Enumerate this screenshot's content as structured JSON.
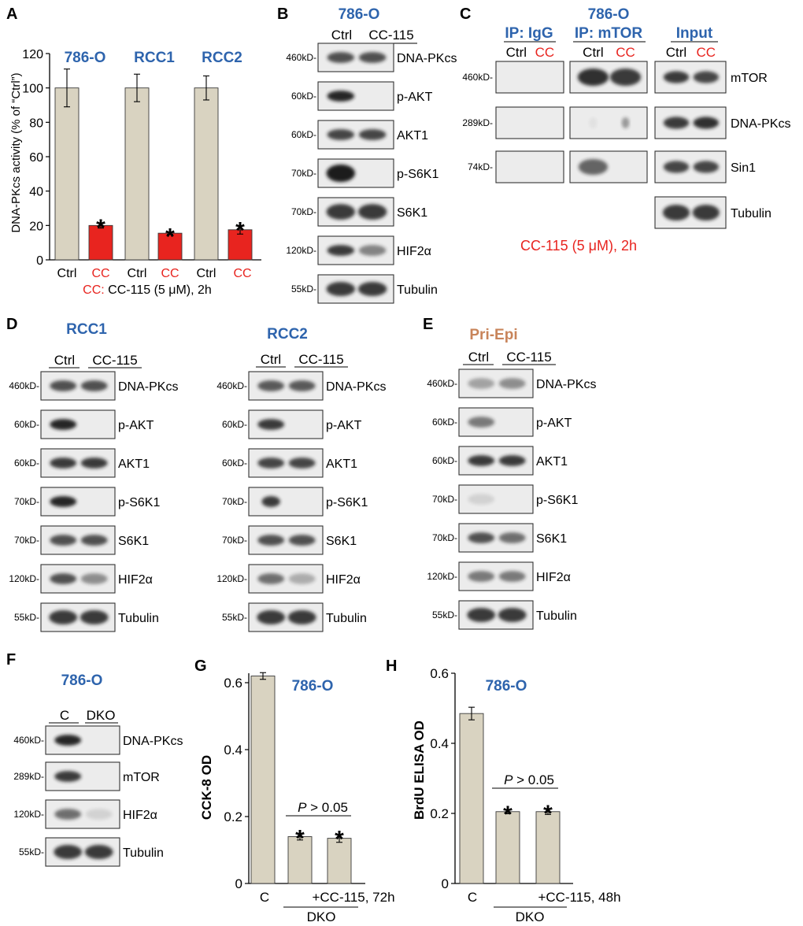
{
  "panelA": {
    "letter": "A",
    "groups": [
      "786-O",
      "RCC1",
      "RCC2"
    ],
    "categories": [
      "Ctrl",
      "CC",
      "Ctrl",
      "CC",
      "Ctrl",
      "CC"
    ],
    "ylabel": "DNA-PKcs activity (% of “Ctrl”)",
    "yticks": [
      "0",
      "20",
      "40",
      "60",
      "80",
      "100",
      "120"
    ],
    "note_prefix": "CC:",
    "note_rest": " CC-115 (5 μM), 2h",
    "sig": [
      "*",
      "*",
      "*"
    ]
  },
  "panelB": {
    "letter": "B",
    "cell": "786-O",
    "lanes": [
      "Ctrl",
      "CC-115"
    ],
    "rows": [
      {
        "kd": "460kD-",
        "protein": "DNA-PKcs"
      },
      {
        "kd": "60kD-",
        "protein": "p-AKT"
      },
      {
        "kd": "60kD-",
        "protein": "AKT1"
      },
      {
        "kd": "70kD-",
        "protein": "p-S6K1"
      },
      {
        "kd": "70kD-",
        "protein": "S6K1"
      },
      {
        "kd": "120kD-",
        "protein": "HIF2α"
      },
      {
        "kd": "55kD-",
        "protein": "Tubulin"
      }
    ]
  },
  "panelC": {
    "letter": "C",
    "cell": "786-O",
    "ip_igg": "IP: IgG",
    "ip_mtor": "IP: mTOR",
    "input": "Input",
    "lane_ctrl": "Ctrl",
    "lane_cc": "CC",
    "kd": [
      "460kD-",
      "289kD-",
      "74kD-"
    ],
    "proteins": [
      "mTOR",
      "DNA-PKcs",
      "Sin1",
      "Tubulin"
    ],
    "note": "CC-115 (5 μM), 2h"
  },
  "panelD": {
    "letter": "D",
    "cells": [
      "RCC1",
      "RCC2"
    ],
    "lanes": [
      "Ctrl",
      "CC-115"
    ],
    "rows": [
      {
        "kd": "460kD-",
        "protein": "DNA-PKcs"
      },
      {
        "kd": "60kD-",
        "protein": "p-AKT"
      },
      {
        "kd": "60kD-",
        "protein": "AKT1"
      },
      {
        "kd": "70kD-",
        "protein": "p-S6K1"
      },
      {
        "kd": "70kD-",
        "protein": "S6K1"
      },
      {
        "kd": "120kD-",
        "protein": "HIF2α"
      },
      {
        "kd": "55kD-",
        "protein": "Tubulin"
      }
    ]
  },
  "panelE": {
    "letter": "E",
    "cell": "Pri-Epi",
    "lanes": [
      "Ctrl",
      "CC-115"
    ],
    "rows": [
      {
        "kd": "460kD-",
        "protein": "DNA-PKcs"
      },
      {
        "kd": "60kD-",
        "protein": "p-AKT"
      },
      {
        "kd": "60kD-",
        "protein": "AKT1"
      },
      {
        "kd": "70kD-",
        "protein": "p-S6K1"
      },
      {
        "kd": "70kD-",
        "protein": "S6K1"
      },
      {
        "kd": "120kD-",
        "protein": "HIF2α"
      },
      {
        "kd": "55kD-",
        "protein": "Tubulin"
      }
    ]
  },
  "panelF": {
    "letter": "F",
    "cell": "786-O",
    "lanes": [
      "C",
      "DKO"
    ],
    "rows": [
      {
        "kd": "460kD-",
        "protein": "DNA-PKcs"
      },
      {
        "kd": "289kD-",
        "protein": "mTOR"
      },
      {
        "kd": "120kD-",
        "protein": "HIF2α"
      },
      {
        "kd": "55kD-",
        "protein": "Tubulin"
      }
    ]
  },
  "panelG": {
    "letter": "G",
    "cell": "786-O",
    "ylabel": "CCK-8 OD",
    "yticks": [
      "0",
      "0.2",
      "0.4",
      "0.6"
    ],
    "xcat": "C",
    "treat": "+CC-115, 72h",
    "group": "DKO",
    "p_italic": "P",
    "p_rest": " > 0.05",
    "sig": "*"
  },
  "panelH": {
    "letter": "H",
    "cell": "786-O",
    "ylabel": "BrdU ELISA OD",
    "yticks": [
      "0",
      "0.2",
      "0.4",
      "0.6"
    ],
    "xcat": "C",
    "treat": "+CC-115, 48h",
    "group": "DKO",
    "p_italic": "P",
    "p_rest": " > 0.05",
    "sig": "*"
  },
  "chart_data": [
    {
      "type": "bar",
      "panel": "A",
      "ylabel": "DNA-PKcs activity (% of “Ctrl”)",
      "ylim": [
        0,
        120
      ],
      "groups": [
        "786-O",
        "RCC1",
        "RCC2"
      ],
      "categories": [
        "Ctrl",
        "CC",
        "Ctrl",
        "CC",
        "Ctrl",
        "CC"
      ],
      "values": [
        100,
        20,
        100,
        15.5,
        100,
        17.5
      ],
      "errors": [
        11,
        1.5,
        8,
        0.7,
        7,
        2.5
      ],
      "colors": [
        "#d9d3c1",
        "#e8241f",
        "#d9d3c1",
        "#e8241f",
        "#d9d3c1",
        "#e8241f"
      ]
    },
    {
      "type": "bar",
      "panel": "G",
      "ylabel": "CCK-8 OD",
      "ylim": [
        0,
        0.65
      ],
      "categories": [
        "C",
        "DKO",
        "DKO +CC-115, 72h"
      ],
      "values": [
        0.62,
        0.14,
        0.135
      ],
      "errors": [
        0.01,
        0.01,
        0.012
      ]
    },
    {
      "type": "bar",
      "panel": "H",
      "ylabel": "BrdU ELISA OD",
      "ylim": [
        0,
        0.6
      ],
      "categories": [
        "C",
        "DKO",
        "DKO +CC-115, 48h"
      ],
      "values": [
        0.485,
        0.205,
        0.205
      ],
      "errors": [
        0.018,
        0.006,
        0.008
      ]
    }
  ],
  "colors": {
    "title_blue": "#2e64ad",
    "red": "#e8241f",
    "orange": "#c8845a",
    "bar": "#d9d3c1"
  }
}
